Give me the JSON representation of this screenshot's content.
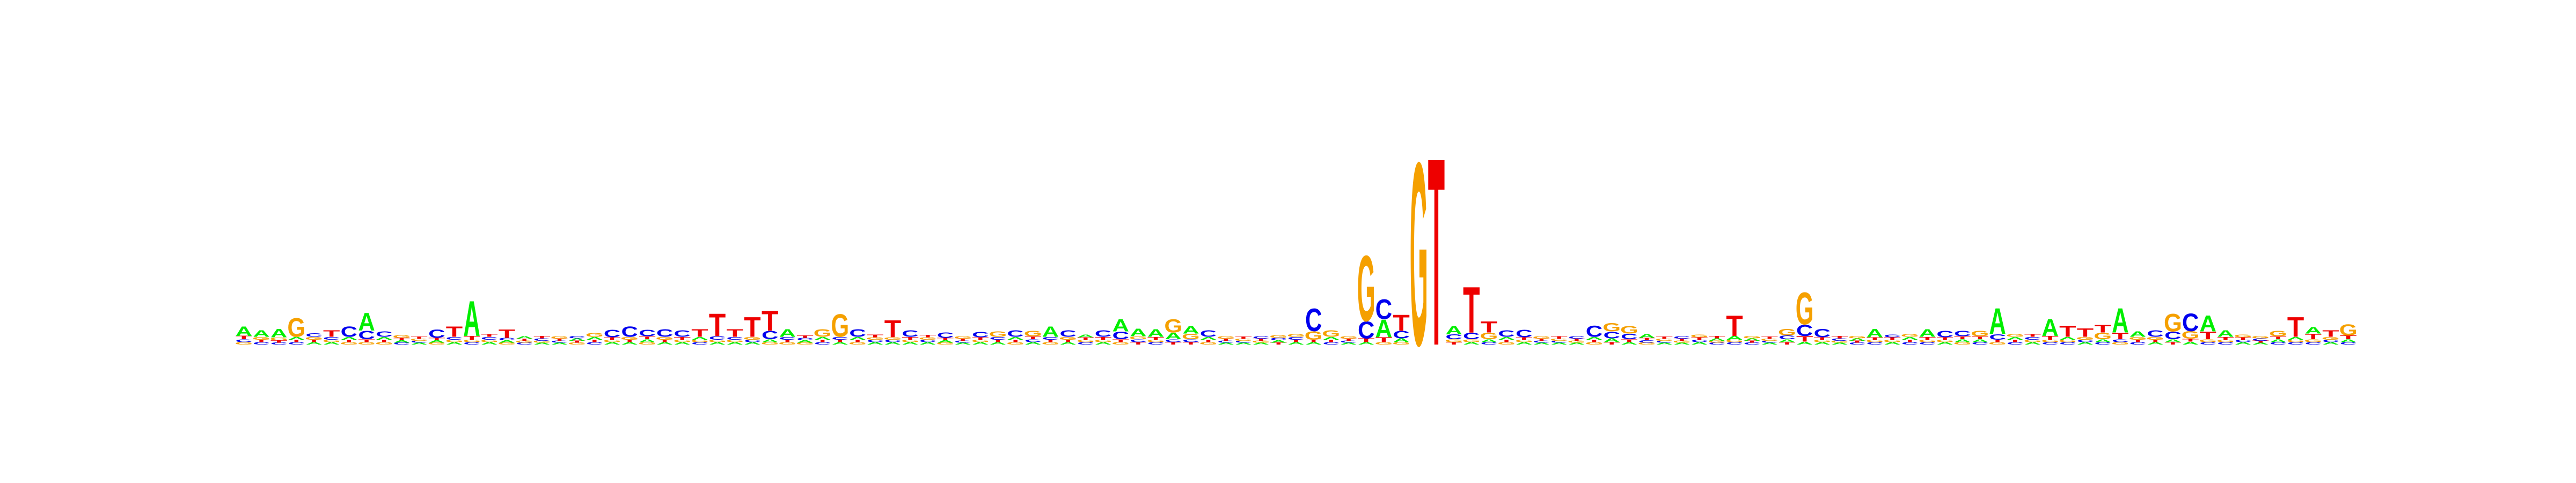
{
  "logo": {
    "alphabet": [
      "A",
      "C",
      "G",
      "T"
    ],
    "colors": {
      "A": "#00ee00",
      "C": "#0000ee",
      "G": "#f5a000",
      "T": "#ee0000"
    },
    "positions": [
      {
        "A": 0.2,
        "C": 0.06,
        "G": 0.05,
        "T": 0.07
      },
      {
        "A": 0.14,
        "C": 0.05,
        "G": 0.06,
        "T": 0.05
      },
      {
        "A": 0.18,
        "C": 0.04,
        "G": 0.06,
        "T": 0.05
      },
      {
        "A": 0.06,
        "C": 0.05,
        "G": 0.4,
        "T": 0.05
      },
      {
        "A": 0.05,
        "C": 0.07,
        "G": 0.06,
        "T": 0.05
      },
      {
        "A": 0.05,
        "C": 0.06,
        "G": 0.05,
        "T": 0.14
      },
      {
        "A": 0.06,
        "C": 0.22,
        "G": 0.05,
        "T": 0.05
      },
      {
        "A": 0.38,
        "C": 0.18,
        "G": 0.05,
        "T": 0.06
      },
      {
        "A": 0.06,
        "C": 0.12,
        "G": 0.05,
        "T": 0.05
      },
      {
        "A": 0.05,
        "C": 0.04,
        "G": 0.06,
        "T": 0.05
      },
      {
        "A": 0.04,
        "C": 0.04,
        "G": 0.04,
        "T": 0.04
      },
      {
        "A": 0.05,
        "C": 0.18,
        "G": 0.04,
        "T": 0.05
      },
      {
        "A": 0.05,
        "C": 0.06,
        "G": 0.05,
        "T": 0.22
      },
      {
        "A": 0.75,
        "C": 0.05,
        "G": 0.05,
        "T": 0.08
      },
      {
        "A": 0.05,
        "C": 0.06,
        "G": 0.05,
        "T": 0.06
      },
      {
        "A": 0.05,
        "C": 0.05,
        "G": 0.04,
        "T": 0.18
      },
      {
        "A": 0.05,
        "C": 0.04,
        "G": 0.04,
        "T": 0.04
      },
      {
        "A": 0.04,
        "C": 0.05,
        "G": 0.04,
        "T": 0.05
      },
      {
        "A": 0.04,
        "C": 0.04,
        "G": 0.05,
        "T": 0.04
      },
      {
        "A": 0.05,
        "C": 0.05,
        "G": 0.04,
        "T": 0.04
      },
      {
        "A": 0.06,
        "C": 0.05,
        "G": 0.08,
        "T": 0.05
      },
      {
        "A": 0.05,
        "C": 0.16,
        "G": 0.05,
        "T": 0.05
      },
      {
        "A": 0.05,
        "C": 0.22,
        "G": 0.06,
        "T": 0.05
      },
      {
        "A": 0.06,
        "C": 0.14,
        "G": 0.05,
        "T": 0.06
      },
      {
        "A": 0.05,
        "C": 0.16,
        "G": 0.06,
        "T": 0.05
      },
      {
        "A": 0.05,
        "C": 0.14,
        "G": 0.05,
        "T": 0.06
      },
      {
        "A": 0.06,
        "C": 0.05,
        "G": 0.05,
        "T": 0.16
      },
      {
        "A": 0.05,
        "C": 0.07,
        "G": 0.05,
        "T": 0.48
      },
      {
        "A": 0.05,
        "C": 0.06,
        "G": 0.05,
        "T": 0.16
      },
      {
        "A": 0.05,
        "C": 0.05,
        "G": 0.06,
        "T": 0.42
      },
      {
        "A": 0.06,
        "C": 0.18,
        "G": 0.05,
        "T": 0.42
      },
      {
        "A": 0.16,
        "C": 0.06,
        "G": 0.05,
        "T": 0.05
      },
      {
        "A": 0.05,
        "C": 0.05,
        "G": 0.04,
        "T": 0.05
      },
      {
        "A": 0.06,
        "C": 0.05,
        "G": 0.16,
        "T": 0.05
      },
      {
        "A": 0.05,
        "C": 0.06,
        "G": 0.48,
        "T": 0.05
      },
      {
        "A": 0.06,
        "C": 0.16,
        "G": 0.05,
        "T": 0.05
      },
      {
        "A": 0.05,
        "C": 0.05,
        "G": 0.05,
        "T": 0.06
      },
      {
        "A": 0.05,
        "C": 0.05,
        "G": 0.05,
        "T": 0.36
      },
      {
        "A": 0.05,
        "C": 0.14,
        "G": 0.05,
        "T": 0.06
      },
      {
        "A": 0.05,
        "C": 0.05,
        "G": 0.05,
        "T": 0.05
      },
      {
        "A": 0.05,
        "C": 0.12,
        "G": 0.04,
        "T": 0.05
      },
      {
        "A": 0.04,
        "C": 0.04,
        "G": 0.05,
        "T": 0.04
      },
      {
        "A": 0.05,
        "C": 0.12,
        "G": 0.05,
        "T": 0.05
      },
      {
        "A": 0.05,
        "C": 0.06,
        "G": 0.12,
        "T": 0.05
      },
      {
        "A": 0.06,
        "C": 0.14,
        "G": 0.05,
        "T": 0.05
      },
      {
        "A": 0.05,
        "C": 0.06,
        "G": 0.12,
        "T": 0.06
      },
      {
        "A": 0.22,
        "C": 0.06,
        "G": 0.05,
        "T": 0.05
      },
      {
        "A": 0.05,
        "C": 0.14,
        "G": 0.06,
        "T": 0.05
      },
      {
        "A": 0.06,
        "C": 0.05,
        "G": 0.05,
        "T": 0.05
      },
      {
        "A": 0.05,
        "C": 0.14,
        "G": 0.05,
        "T": 0.06
      },
      {
        "A": 0.26,
        "C": 0.16,
        "G": 0.05,
        "T": 0.06
      },
      {
        "A": 0.16,
        "C": 0.06,
        "G": 0.06,
        "T": 0.05
      },
      {
        "A": 0.16,
        "C": 0.05,
        "G": 0.05,
        "T": 0.06
      },
      {
        "A": 0.14,
        "C": 0.06,
        "G": 0.28,
        "T": 0.05
      },
      {
        "A": 0.16,
        "C": 0.06,
        "G": 0.12,
        "T": 0.05
      },
      {
        "A": 0.06,
        "C": 0.14,
        "G": 0.05,
        "T": 0.05
      },
      {
        "A": 0.04,
        "C": 0.04,
        "G": 0.05,
        "T": 0.04
      },
      {
        "A": 0.04,
        "C": 0.04,
        "G": 0.04,
        "T": 0.04
      },
      {
        "A": 0.04,
        "C": 0.05,
        "G": 0.04,
        "T": 0.04
      },
      {
        "A": 0.05,
        "C": 0.05,
        "G": 0.06,
        "T": 0.04
      },
      {
        "A": 0.05,
        "C": 0.06,
        "G": 0.06,
        "T": 0.05
      },
      {
        "A": 0.05,
        "C": 0.48,
        "G": 0.18,
        "T": 0.05
      },
      {
        "A": 0.06,
        "C": 0.05,
        "G": 0.14,
        "T": 0.05
      },
      {
        "A": 0.04,
        "C": 0.04,
        "G": 0.05,
        "T": 0.04
      },
      {
        "A": 0.05,
        "C": 0.36,
        "G": 1.4,
        "T": 0.08
      },
      {
        "A": 0.38,
        "C": 0.42,
        "G": 0.05,
        "T": 0.1
      },
      {
        "A": 0.08,
        "C": 0.16,
        "G": 0.05,
        "T": 0.34
      },
      {
        "A": 0.0,
        "C": 0.0,
        "G": 3.9,
        "T": 0.0
      },
      {
        "A": 0.0,
        "C": 0.0,
        "G": 0.0,
        "T": 4.0
      },
      {
        "A": 0.18,
        "C": 0.1,
        "G": 0.06,
        "T": 0.05
      },
      {
        "A": 0.05,
        "C": 0.14,
        "G": 0.06,
        "T": 0.98
      },
      {
        "A": 0.06,
        "C": 0.05,
        "G": 0.14,
        "T": 0.24
      },
      {
        "A": 0.06,
        "C": 0.14,
        "G": 0.05,
        "T": 0.05
      },
      {
        "A": 0.05,
        "C": 0.16,
        "G": 0.05,
        "T": 0.05
      },
      {
        "A": 0.04,
        "C": 0.04,
        "G": 0.05,
        "T": 0.04
      },
      {
        "A": 0.04,
        "C": 0.04,
        "G": 0.04,
        "T": 0.05
      },
      {
        "A": 0.04,
        "C": 0.05,
        "G": 0.04,
        "T": 0.04
      },
      {
        "A": 0.06,
        "C": 0.24,
        "G": 0.05,
        "T": 0.05
      },
      {
        "A": 0.08,
        "C": 0.14,
        "G": 0.18,
        "T": 0.05
      },
      {
        "A": 0.05,
        "C": 0.12,
        "G": 0.16,
        "T": 0.06
      },
      {
        "A": 0.08,
        "C": 0.05,
        "G": 0.04,
        "T": 0.05
      },
      {
        "A": 0.04,
        "C": 0.04,
        "G": 0.04,
        "T": 0.04
      },
      {
        "A": 0.04,
        "C": 0.05,
        "G": 0.04,
        "T": 0.04
      },
      {
        "A": 0.05,
        "C": 0.05,
        "G": 0.06,
        "T": 0.05
      },
      {
        "A": 0.05,
        "C": 0.04,
        "G": 0.04,
        "T": 0.05
      },
      {
        "A": 0.08,
        "C": 0.05,
        "G": 0.05,
        "T": 0.44
      },
      {
        "A": 0.05,
        "C": 0.04,
        "G": 0.05,
        "T": 0.04
      },
      {
        "A": 0.04,
        "C": 0.04,
        "G": 0.04,
        "T": 0.04
      },
      {
        "A": 0.06,
        "C": 0.08,
        "G": 0.14,
        "T": 0.05
      },
      {
        "A": 0.06,
        "C": 0.24,
        "G": 0.68,
        "T": 0.12
      },
      {
        "A": 0.05,
        "C": 0.18,
        "G": 0.05,
        "T": 0.05
      },
      {
        "A": 0.04,
        "C": 0.05,
        "G": 0.04,
        "T": 0.05
      },
      {
        "A": 0.05,
        "C": 0.04,
        "G": 0.05,
        "T": 0.04
      },
      {
        "A": 0.18,
        "C": 0.05,
        "G": 0.05,
        "T": 0.05
      },
      {
        "A": 0.05,
        "C": 0.06,
        "G": 0.05,
        "T": 0.05
      },
      {
        "A": 0.06,
        "C": 0.05,
        "G": 0.06,
        "T": 0.05
      },
      {
        "A": 0.16,
        "C": 0.05,
        "G": 0.05,
        "T": 0.06
      },
      {
        "A": 0.05,
        "C": 0.14,
        "G": 0.05,
        "T": 0.05
      },
      {
        "A": 0.06,
        "C": 0.12,
        "G": 0.05,
        "T": 0.06
      },
      {
        "A": 0.06,
        "C": 0.05,
        "G": 0.12,
        "T": 0.06
      },
      {
        "A": 0.55,
        "C": 0.12,
        "G": 0.05,
        "T": 0.05
      },
      {
        "A": 0.06,
        "C": 0.05,
        "G": 0.06,
        "T": 0.05
      },
      {
        "A": 0.05,
        "C": 0.06,
        "G": 0.05,
        "T": 0.06
      },
      {
        "A": 0.36,
        "C": 0.05,
        "G": 0.05,
        "T": 0.08
      },
      {
        "A": 0.06,
        "C": 0.05,
        "G": 0.05,
        "T": 0.24
      },
      {
        "A": 0.05,
        "C": 0.05,
        "G": 0.06,
        "T": 0.18
      },
      {
        "A": 0.06,
        "C": 0.05,
        "G": 0.14,
        "T": 0.16
      },
      {
        "A": 0.52,
        "C": 0.06,
        "G": 0.05,
        "T": 0.14
      },
      {
        "A": 0.12,
        "C": 0.05,
        "G": 0.06,
        "T": 0.05
      },
      {
        "A": 0.05,
        "C": 0.14,
        "G": 0.06,
        "T": 0.05
      },
      {
        "A": 0.06,
        "C": 0.16,
        "G": 0.38,
        "T": 0.05
      },
      {
        "A": 0.06,
        "C": 0.38,
        "G": 0.16,
        "T": 0.06
      },
      {
        "A": 0.34,
        "C": 0.05,
        "G": 0.06,
        "T": 0.16
      },
      {
        "A": 0.14,
        "C": 0.05,
        "G": 0.05,
        "T": 0.06
      },
      {
        "A": 0.05,
        "C": 0.05,
        "G": 0.06,
        "T": 0.05
      },
      {
        "A": 0.04,
        "C": 0.05,
        "G": 0.05,
        "T": 0.04
      },
      {
        "A": 0.06,
        "C": 0.05,
        "G": 0.12,
        "T": 0.06
      },
      {
        "A": 0.06,
        "C": 0.05,
        "G": 0.05,
        "T": 0.42
      },
      {
        "A": 0.14,
        "C": 0.05,
        "G": 0.06,
        "T": 0.12
      },
      {
        "A": 0.05,
        "C": 0.05,
        "G": 0.06,
        "T": 0.14
      },
      {
        "A": 0.06,
        "C": 0.05,
        "G": 0.24,
        "T": 0.08
      }
    ]
  }
}
